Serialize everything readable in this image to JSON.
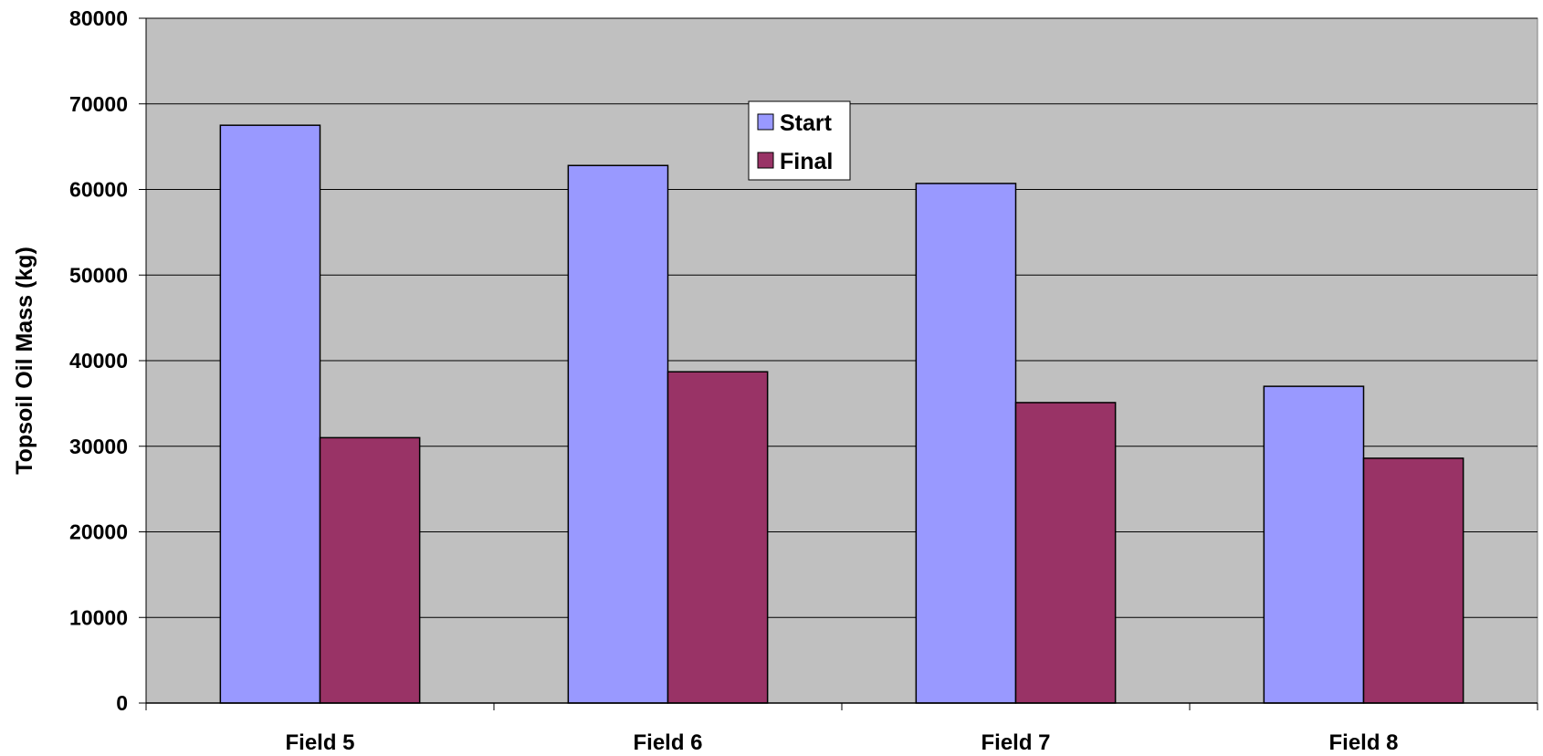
{
  "chart_data": {
    "type": "bar",
    "categories": [
      "Field 5",
      "Field 6",
      "Field 7",
      "Field 8"
    ],
    "series": [
      {
        "name": "Start",
        "values": [
          67500,
          62800,
          60700,
          37000
        ],
        "color": "#9999ff"
      },
      {
        "name": "Final",
        "values": [
          31000,
          38700,
          35100,
          28600
        ],
        "color": "#993366"
      }
    ],
    "title": "",
    "xlabel": "",
    "ylabel": "Topsoil Oil Mass (kg)",
    "ylim": [
      0,
      80000
    ],
    "yticks": [
      "0",
      "10000",
      "20000",
      "30000",
      "40000",
      "50000",
      "60000",
      "70000",
      "80000"
    ],
    "grid": true,
    "legend_position": "top-center",
    "plot_background": "#c0c0c0"
  }
}
